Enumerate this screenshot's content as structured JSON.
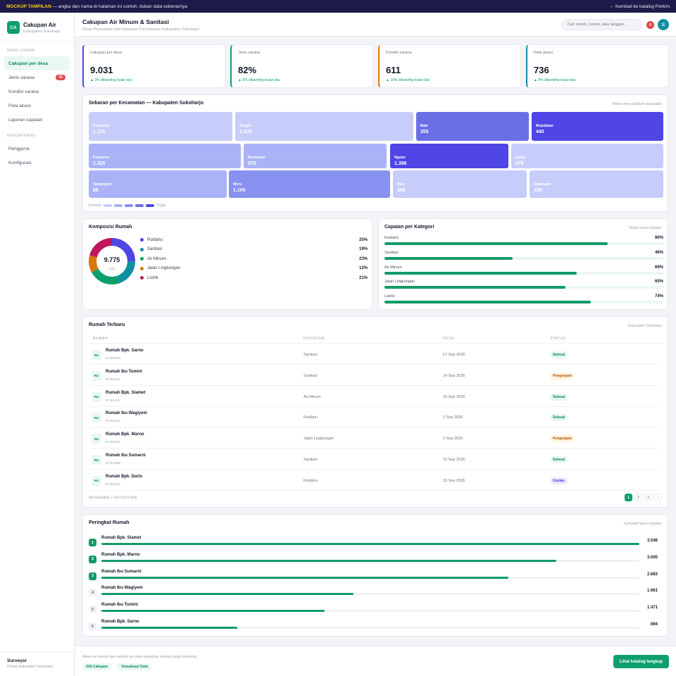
{
  "topbar": {
    "tag": "MOCKUP TAMPILAN",
    "note": " — angka dan nama di halaman ini contoh, bukan data sebenarnya",
    "back": "← Kembali ke katalog Perkim"
  },
  "brand": {
    "logo": "CA",
    "title": "Cakupan Air",
    "subtitle": "Kabupaten Sukoharjo"
  },
  "sidebar": {
    "section_main": "MENU UTAMA",
    "items": [
      {
        "label": "Cakupan per desa",
        "badge": ""
      },
      {
        "label": "Jenis sarana",
        "badge": "35"
      },
      {
        "label": "Kondisi sarana",
        "badge": ""
      },
      {
        "label": "Peta akses",
        "badge": ""
      },
      {
        "label": "Laporan capaian",
        "badge": ""
      }
    ],
    "section_settings": "PENGATURAN",
    "settings": [
      {
        "label": "Pengguna"
      },
      {
        "label": "Konfigurasi"
      }
    ],
    "user": {
      "name": "Surveyor",
      "org": "Perkim Kabupaten Sukoharjo"
    }
  },
  "header": {
    "title": "Cakupan Air Minum & Sanitasi",
    "subtitle": "Dinas Perumahan dan Kawasan Permukiman Kabupaten Sukoharjo",
    "search_placeholder": "Cari rumah, nomor, atau tanggal...",
    "notif_count": "6",
    "avatar": "S"
  },
  "kpis": [
    {
      "label": "Cakupan per desa",
      "value": "9.031",
      "delta": "▲ 3% dibanding bulan lalu",
      "accent": "#4f46e5"
    },
    {
      "label": "Jenis sarana",
      "value": "82%",
      "delta": "▲ 9% dibanding bulan lalu",
      "accent": "#0e9f6e"
    },
    {
      "label": "Kondisi sarana",
      "value": "611",
      "delta": "▲ 18% dibanding bulan lalu",
      "accent": "#d97706"
    },
    {
      "label": "Peta akses",
      "value": "736",
      "delta": "▲ 9% dibanding bulan lalu",
      "accent": "#0e8fa3"
    }
  ],
  "treemap": {
    "title": "Sebaran per Kecamatan — Kabupaten Sukoharjo",
    "note": "Warna menunjukkan kepadatan",
    "low": "Rendah",
    "high": "Tinggi",
    "scale_colors": [
      "#c7cdfa",
      "#aab3f7",
      "#8890f0",
      "#6a6fe6",
      "#4f46e5"
    ],
    "tiles": [
      {
        "name": "Kartasura",
        "value": "1.119",
        "level": 0
      },
      {
        "name": "Grogol",
        "value": "1.230",
        "level": 0
      },
      {
        "name": "Baki",
        "value": "355",
        "level": 3
      },
      {
        "name": "Mojolaban",
        "value": "440",
        "level": 4
      },
      {
        "name": "Polokarto",
        "value": "1.325",
        "level": 1
      },
      {
        "name": "Bendosari",
        "value": "579",
        "level": 1
      },
      {
        "name": "Nguter",
        "value": "1.396",
        "level": 4
      },
      {
        "name": "Gatak",
        "value": "678",
        "level": 0
      },
      {
        "name": "Tawangsari",
        "value": "88",
        "level": 1
      },
      {
        "name": "Weru",
        "value": "1.106",
        "level": 2
      },
      {
        "name": "Bulu",
        "value": "389",
        "level": 0
      },
      {
        "name": "Sukoharjo",
        "value": "159",
        "level": 0
      }
    ]
  },
  "composition": {
    "title": "Komposisi Rumah",
    "total": "9.775",
    "total_label": "total",
    "items": [
      {
        "label": "Rutilahu",
        "pct": "25%",
        "value": 25,
        "color": "#4f46e5"
      },
      {
        "label": "Sanitasi",
        "pct": "19%",
        "value": 19,
        "color": "#0e8fa3"
      },
      {
        "label": "Air Minum",
        "pct": "23%",
        "value": 23,
        "color": "#0e9f6e"
      },
      {
        "label": "Jalan Lingkungan",
        "pct": "12%",
        "value": 12,
        "color": "#d97706"
      },
      {
        "label": "Listrik",
        "pct": "21%",
        "value": 21,
        "color": "#be185d"
      }
    ]
  },
  "achievement": {
    "title": "Capaian per Kategori",
    "note": "Target tahun berjalan",
    "items": [
      {
        "label": "Rutilahu",
        "pct": "80%",
        "value": 80
      },
      {
        "label": "Sanitasi",
        "pct": "46%",
        "value": 46
      },
      {
        "label": "Air Minum",
        "pct": "69%",
        "value": 69
      },
      {
        "label": "Jalan Lingkungan",
        "pct": "65%",
        "value": 65
      },
      {
        "label": "Listrik",
        "pct": "74%",
        "value": 74
      }
    ]
  },
  "table": {
    "title": "Rumah Terbaru",
    "note": "Kabupaten Sukoharjo",
    "headers": [
      "RUMAH",
      "PROGRAM",
      "DESA",
      "STATUS"
    ],
    "rows": [
      {
        "tag": "RU",
        "name": "Rumah Bpk. Sarno",
        "id": "ID 001236",
        "program": "Sanitasi",
        "date": "17 Sep 2026",
        "status": "Selesai",
        "kind": "selesai"
      },
      {
        "tag": "RU",
        "name": "Rumah Ibu Tumini",
        "id": "ID 001241",
        "program": "Sanitasi",
        "date": "14 Sep 2026",
        "status": "Pengerjaan",
        "kind": "pengerjaan"
      },
      {
        "tag": "RU",
        "name": "Rumah Bpk. Slamet",
        "id": "ID 001278",
        "program": "Air Minum",
        "date": "19 Sep 2026",
        "status": "Selesai",
        "kind": "selesai"
      },
      {
        "tag": "RU",
        "name": "Rumah Ibu Wagiyem",
        "id": "ID 001310",
        "program": "Rutilahu",
        "date": "2 Sep 2026",
        "status": "Selesai",
        "kind": "selesai"
      },
      {
        "tag": "RU",
        "name": "Rumah Bpk. Marno",
        "id": "ID 001352",
        "program": "Jalan Lingkungan",
        "date": "3 Sep 2026",
        "status": "Pengerjaan",
        "kind": "pengerjaan"
      },
      {
        "tag": "RU",
        "name": "Rumah Ibu Sumarni",
        "id": "ID 001389",
        "program": "Sanitasi",
        "date": "19 Sep 2026",
        "status": "Selesai",
        "kind": "selesai"
      },
      {
        "tag": "RU",
        "name": "Rumah Bpk. Darto",
        "id": "ID 001426",
        "program": "Rutilahu",
        "date": "15 Sep 2026",
        "status": "Usulan",
        "kind": "usulan"
      }
    ],
    "footer": "Menampilkan 7 dari 9.813 data",
    "pages": [
      "1",
      "2",
      "3",
      "›"
    ]
  },
  "ranking": {
    "title": "Peringkat Rumah",
    "note": "Kumulatif tahun berjalan",
    "max": 3546,
    "items": [
      {
        "rank": "1",
        "name": "Rumah Bpk. Slamet",
        "value": 3546,
        "display": "3.546",
        "top": true
      },
      {
        "rank": "2",
        "name": "Rumah Bpk. Marno",
        "value": 3000,
        "display": "3.000",
        "top": true
      },
      {
        "rank": "3",
        "name": "Rumah Ibu Sumarni",
        "value": 2683,
        "display": "2.683",
        "top": true
      },
      {
        "rank": "4",
        "name": "Rumah Ibu Wagiyem",
        "value": 1661,
        "display": "1.661",
        "top": false
      },
      {
        "rank": "5",
        "name": "Rumah Ibu Tumini",
        "value": 1471,
        "display": "1.471",
        "top": false
      },
      {
        "rank": "6",
        "name": "Rumah Bpk. Sarno",
        "value": 894,
        "display": "894",
        "top": false
      }
    ]
  },
  "footer": {
    "text": "Akses air minum dan sanitasi per desa terpantau menuju target universal.",
    "chips": [
      "GIS Cakupan",
      "Visualisasi Data"
    ],
    "button": "Lihat katalog lengkap"
  }
}
